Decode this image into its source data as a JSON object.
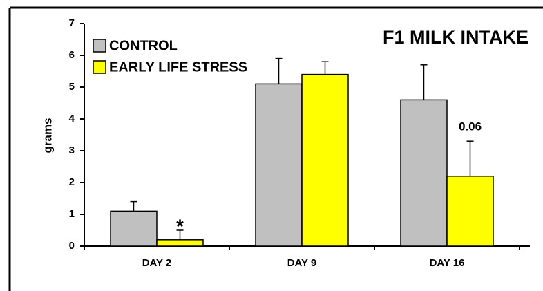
{
  "chart_data": {
    "type": "bar",
    "title": "F1 MILK INTAKE",
    "y_label": "grams",
    "categories": [
      "DAY 2",
      "DAY 9",
      "DAY 16"
    ],
    "series": [
      {
        "name": "CONTROL",
        "color": "#c0c0c0",
        "values": [
          1.1,
          5.1,
          4.6
        ],
        "errors": [
          0.3,
          0.8,
          1.1
        ]
      },
      {
        "name": "EARLY LIFE STRESS",
        "color": "#ffff00",
        "values": [
          0.2,
          5.4,
          2.2
        ],
        "errors": [
          0.3,
          0.4,
          1.1
        ]
      }
    ],
    "annotations": [
      "*",
      "0.06"
    ],
    "ylim": [
      0,
      7
    ],
    "yticks": [
      0,
      1,
      2,
      3,
      4,
      5,
      6,
      7
    ],
    "grid": false,
    "legend": "upper left"
  }
}
